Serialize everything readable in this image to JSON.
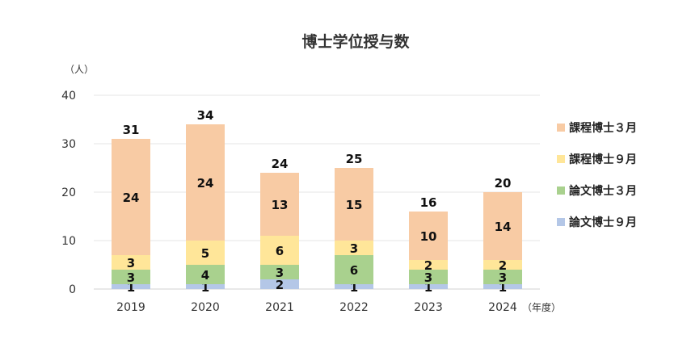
{
  "chart_data": {
    "type": "bar",
    "stacked": true,
    "title": "博士学位授与数",
    "y_unit": "（人）",
    "x_unit": "（年度）",
    "categories": [
      "2019",
      "2020",
      "2021",
      "2022",
      "2023",
      "2024"
    ],
    "series": [
      {
        "name": "論文博士９月",
        "color": "#b4c7e7",
        "values": [
          1,
          1,
          2,
          1,
          1,
          1
        ]
      },
      {
        "name": "論文博士３月",
        "color": "#a9d18e",
        "values": [
          3,
          4,
          3,
          6,
          3,
          3
        ]
      },
      {
        "name": "課程博士９月",
        "color": "#ffe699",
        "values": [
          3,
          5,
          6,
          3,
          2,
          2
        ]
      },
      {
        "name": "課程博士３月",
        "color": "#f8cba4",
        "values": [
          24,
          24,
          13,
          15,
          10,
          14
        ]
      }
    ],
    "totals": [
      31,
      34,
      24,
      25,
      16,
      20
    ],
    "ylim": [
      0,
      40
    ],
    "yticks": [
      0,
      10,
      20,
      30,
      40
    ],
    "legend_order": [
      "課程博士３月",
      "課程博士９月",
      "論文博士３月",
      "論文博士９月"
    ],
    "legend_position": "right",
    "grid": true
  }
}
